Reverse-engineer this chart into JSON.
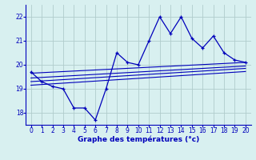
{
  "xlabel": "Graphe des températures (°c)",
  "bg_color": "#d8f0f0",
  "line_color": "#0000bb",
  "grid_color": "#b0cccc",
  "xlim": [
    -0.5,
    20.5
  ],
  "ylim": [
    17.5,
    22.5
  ],
  "yticks": [
    18,
    19,
    20,
    21,
    22
  ],
  "xticks": [
    0,
    1,
    2,
    3,
    4,
    5,
    6,
    7,
    8,
    9,
    10,
    11,
    12,
    13,
    14,
    15,
    16,
    17,
    18,
    19,
    20
  ],
  "main_series": [
    [
      0,
      19.7
    ],
    [
      1,
      19.3
    ],
    [
      2,
      19.1
    ],
    [
      3,
      19.0
    ],
    [
      4,
      18.2
    ],
    [
      5,
      18.2
    ],
    [
      6,
      17.7
    ],
    [
      7,
      19.0
    ],
    [
      8,
      20.5
    ],
    [
      9,
      20.1
    ],
    [
      10,
      20.0
    ],
    [
      11,
      21.0
    ],
    [
      12,
      22.0
    ],
    [
      13,
      21.3
    ],
    [
      14,
      22.0
    ],
    [
      15,
      21.1
    ],
    [
      16,
      20.7
    ],
    [
      17,
      21.2
    ],
    [
      18,
      20.5
    ],
    [
      19,
      20.2
    ],
    [
      20,
      20.1
    ]
  ],
  "band_series": [
    [
      [
        0,
        19.65
      ],
      [
        20,
        20.1
      ]
    ],
    [
      [
        0,
        19.45
      ],
      [
        20,
        19.95
      ]
    ],
    [
      [
        0,
        19.3
      ],
      [
        20,
        19.85
      ]
    ],
    [
      [
        0,
        19.15
      ],
      [
        20,
        19.72
      ]
    ]
  ]
}
